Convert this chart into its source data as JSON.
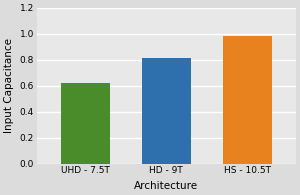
{
  "categories": [
    "UHD - 7.5T",
    "HD - 9T",
    "HS - 10.5T"
  ],
  "values": [
    0.62,
    0.81,
    0.98
  ],
  "bar_colors": [
    "#4a8c2a",
    "#2e6fad",
    "#e8821e"
  ],
  "xlabel": "Architecture",
  "ylabel": "Input Capacitance",
  "ylim": [
    0,
    1.2
  ],
  "yticks": [
    0.0,
    0.2,
    0.4,
    0.6,
    0.8,
    1.0,
    1.2
  ],
  "background_color": "#dcdcdc",
  "plot_bg_color": "#e8e8e8",
  "grid_color": "#ffffff",
  "tick_fontsize": 6.5,
  "label_fontsize": 7.5,
  "bar_width": 0.6,
  "figsize": [
    3.0,
    1.95
  ],
  "dpi": 100
}
